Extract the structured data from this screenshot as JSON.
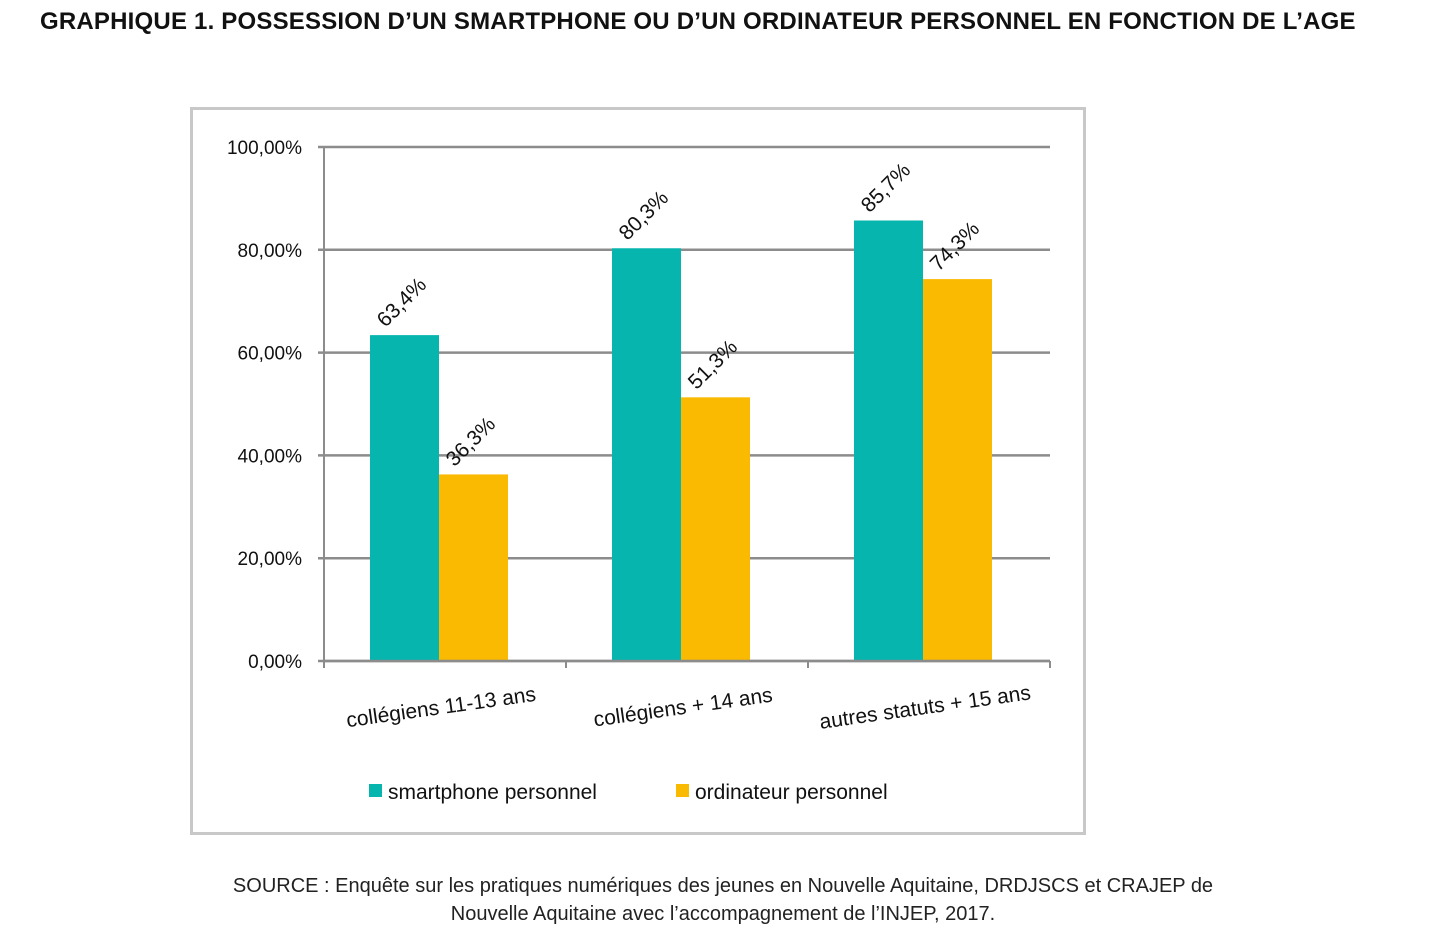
{
  "title": "GRAPHIQUE 1. POSSESSION D’UN SMARTPHONE OU D’UN ORDINATEUR PERSONNEL EN FONCTION DE L’AGE",
  "source_line1": "SOURCE : Enquête sur les pratiques numériques des jeunes en Nouvelle Aquitaine, DRDJSCS et CRAJEP de",
  "source_line2": "Nouvelle Aquitaine avec l’accompagnement de l’INJEP, 2017.",
  "colors": {
    "smartphone": "#05b5ae",
    "ordinateur": "#fbba02",
    "grid": "#8c8c8c",
    "frame": "#c8c8c8"
  },
  "chart_data": {
    "type": "bar",
    "categories": [
      "collégiens 11-13 ans",
      "collégiens + 14 ans",
      "autres statuts + 15 ans"
    ],
    "series": [
      {
        "name": "smartphone personnel",
        "values": [
          63.4,
          80.3,
          85.7
        ],
        "labels": [
          "63,4%",
          "80,3%",
          "85,7%"
        ]
      },
      {
        "name": "ordinateur personnel",
        "values": [
          36.3,
          51.3,
          74.3
        ],
        "labels": [
          "36,3%",
          "51,3%",
          "74,3%"
        ]
      }
    ],
    "y_ticks": [
      "0,00%",
      "20,00%",
      "40,00%",
      "60,00%",
      "80,00%",
      "100,00%"
    ],
    "ylim": [
      0,
      100
    ],
    "grid": true,
    "legend": "bottom"
  }
}
